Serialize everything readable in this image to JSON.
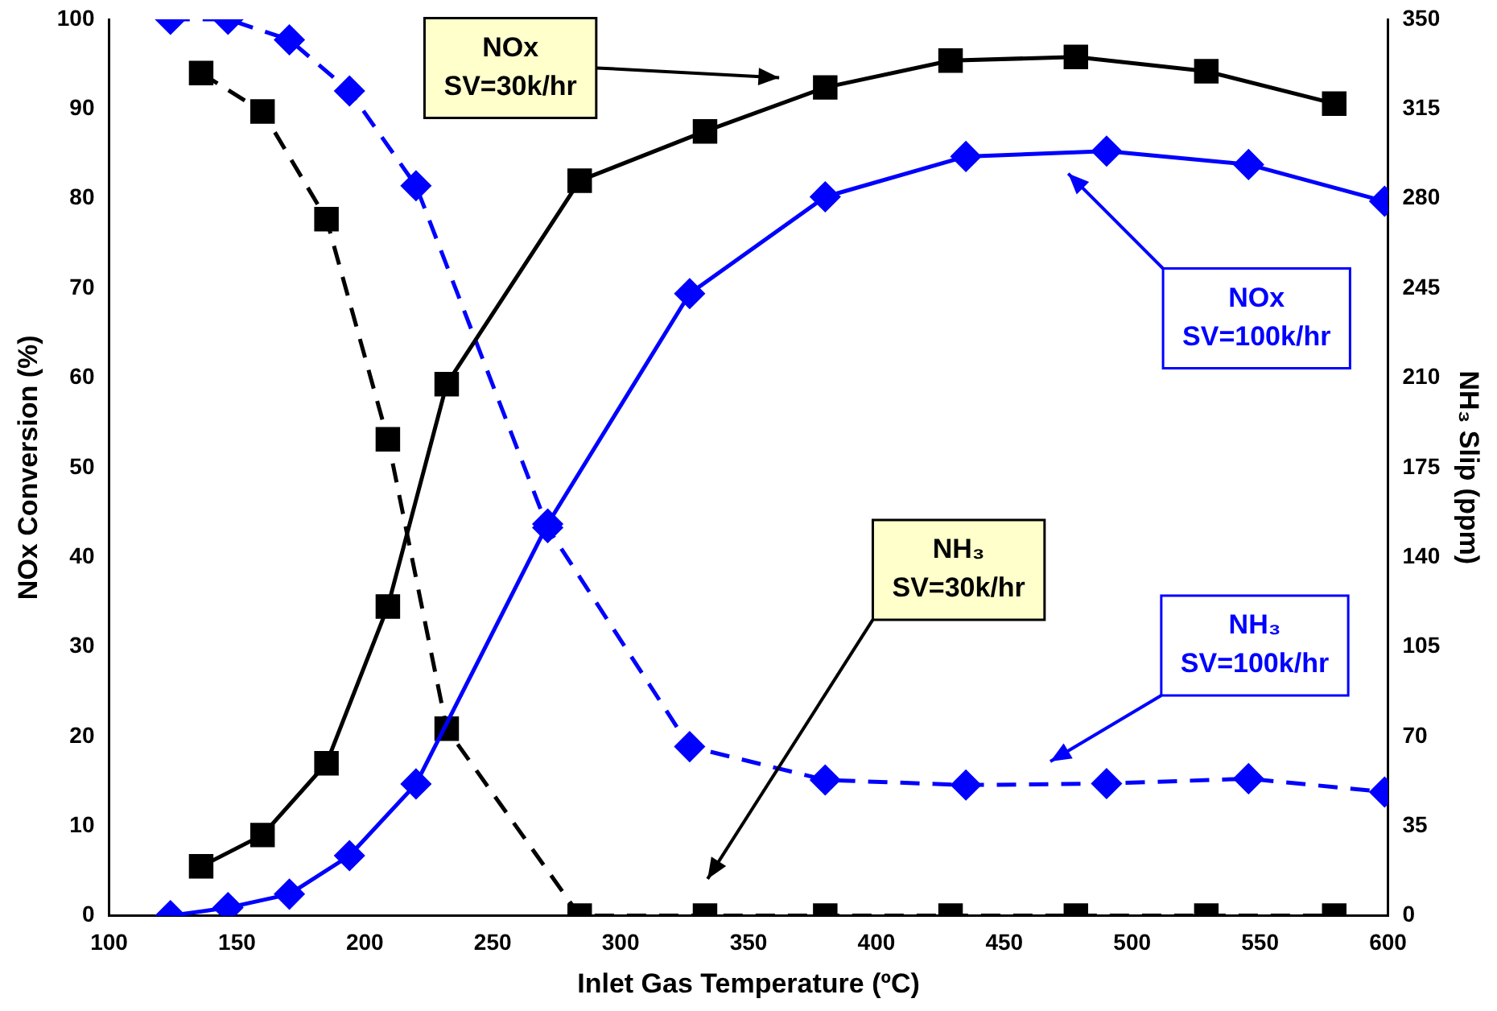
{
  "chart_data": {
    "type": "line",
    "xlabel": "Inlet Gas Temperature (ºC)",
    "ylabel": "NOx Conversion (%)",
    "y2label": "NH₃ Slip (ppm)",
    "xlim": [
      100,
      600
    ],
    "xticks": [
      100,
      150,
      200,
      250,
      300,
      350,
      400,
      450,
      500,
      550,
      600
    ],
    "ylim": [
      0,
      100
    ],
    "yticks": [
      0,
      10,
      20,
      30,
      40,
      50,
      60,
      70,
      80,
      90,
      100
    ],
    "y2lim": [
      0,
      350
    ],
    "y2ticks": [
      0,
      35,
      70,
      105,
      140,
      175,
      210,
      245,
      280,
      315,
      350
    ],
    "grid": false,
    "legend": false,
    "annotations": [
      "NOx SV=30k/hr",
      "NOx SV=100k/hr",
      "NH₃ SV=30k/hr",
      "NH₃ SV=100k/hr"
    ],
    "series": [
      {
        "color": "#000000",
        "marker": "square",
        "line_style": "solid",
        "x": [
          136,
          160,
          185,
          209,
          232,
          284,
          333,
          380,
          429,
          478,
          529,
          579
        ],
        "values": [
          5.5,
          9,
          17,
          34.5,
          59.3,
          82,
          87.5,
          92.4,
          95.4,
          95.8,
          94.2,
          90.6
        ]
      },
      {
        "color": "#0000ff",
        "marker": "diamond",
        "line_style": "solid",
        "x": [
          124,
          146.5,
          170.5,
          194,
          220,
          271.5,
          327,
          380,
          435,
          490,
          545.5,
          598.7
        ],
        "values": [
          0,
          0.9,
          2.4,
          6.7,
          14.7,
          43.7,
          69.4,
          80.2,
          84.7,
          85.3,
          83.8,
          79.7
        ]
      },
      {
        "color": "#000000",
        "marker": "square",
        "line_style": "dashed",
        "axis": "y2",
        "x": [
          136,
          160,
          185,
          209,
          232,
          284,
          333,
          380,
          429,
          478,
          529,
          579
        ],
        "values": [
          329,
          314,
          272,
          186,
          73,
          0,
          0,
          0,
          0,
          0,
          0,
          0
        ]
      },
      {
        "color": "#0000ff",
        "marker": "diamond",
        "line_style": "dashed",
        "axis": "y2",
        "x": [
          124,
          146.5,
          170.5,
          194,
          220,
          271.5,
          327,
          380,
          435,
          490,
          545.5,
          598.7
        ],
        "values": [
          350,
          350,
          342,
          322,
          285,
          151.5,
          66,
          53,
          51,
          51.6,
          53.5,
          48.3
        ]
      }
    ]
  }
}
